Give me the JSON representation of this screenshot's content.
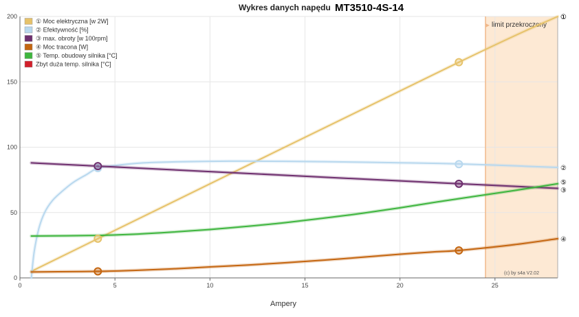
{
  "chart_data": {
    "type": "line",
    "title": "Wykres danych napędu",
    "model": "MT3510-4S-14",
    "xlabel": "Ampery",
    "ylabel": "",
    "xlim": [
      0,
      28.3
    ],
    "ylim": [
      0,
      200
    ],
    "xticks": [
      0,
      5,
      10,
      15,
      20,
      25
    ],
    "yticks": [
      0,
      50,
      100,
      150,
      200
    ],
    "grid": true,
    "legend_position": "top-left",
    "limit": {
      "label": "limit przekroczony",
      "x_start": 24.5,
      "color": "#fde9d4"
    },
    "credit": "(c) by s4a   V2.02",
    "series": [
      {
        "name": "Moc elektryczna [w 2W]",
        "marker": "①",
        "legend_prefix": "①",
        "color": "#e6c26a",
        "x": [
          0.6,
          4.1,
          23.1,
          28.3
        ],
        "y": [
          5,
          30,
          165,
          200
        ],
        "points": [
          [
            4.1,
            30
          ],
          [
            23.1,
            165
          ]
        ]
      },
      {
        "name": "Efektywność [%]",
        "marker": "②",
        "legend_prefix": "②",
        "color": "#b8d8ee",
        "x": [
          0.6,
          0.75,
          1,
          1.3,
          1.7,
          2.2,
          2.8,
          3.5,
          4.1,
          5,
          6.5,
          8,
          10,
          12,
          14,
          16,
          18,
          20,
          22,
          23.1,
          25,
          28.3
        ],
        "y": [
          0,
          20,
          38,
          50,
          59,
          66,
          73,
          79,
          84,
          86,
          88,
          88.7,
          89.2,
          89.3,
          89.2,
          88.9,
          88.5,
          88.1,
          87.6,
          87.2,
          86.3,
          84.5
        ],
        "points": [
          [
            4.1,
            84
          ],
          [
            23.1,
            87
          ]
        ]
      },
      {
        "name": "max. obroty [w 100rpm]",
        "marker": "③",
        "legend_prefix": "③",
        "color": "#6e2f6e",
        "x": [
          0.6,
          4.1,
          23.1,
          28.3
        ],
        "y": [
          88,
          85.5,
          72,
          68.5
        ],
        "points": [
          [
            4.1,
            85.5
          ],
          [
            23.1,
            72
          ]
        ]
      },
      {
        "name": "Moc tracona [W]",
        "marker": "④",
        "legend_prefix": "④",
        "color": "#c4650f",
        "x": [
          0.6,
          2,
          4.1,
          6,
          8,
          10,
          12,
          14,
          16,
          18,
          20,
          22,
          23.1,
          26,
          28.3
        ],
        "y": [
          4.5,
          4.7,
          5,
          5.7,
          6.9,
          8.4,
          9.8,
          11.6,
          13.6,
          15.8,
          18.1,
          20.1,
          21,
          25.4,
          30
        ],
        "points": [
          [
            4.1,
            5
          ],
          [
            23.1,
            21
          ]
        ]
      },
      {
        "name": "Temp. obudowy silnika [°C]",
        "marker": "⑤",
        "legend_prefix": "⑤",
        "color": "#3eb53e",
        "x": [
          0.6,
          4.1,
          6,
          8,
          10,
          12,
          14,
          16,
          18,
          20,
          22,
          24,
          26,
          28.3
        ],
        "y": [
          32,
          32.5,
          33.4,
          35,
          37,
          39.5,
          42.3,
          45.7,
          49.4,
          53.6,
          58.2,
          62.5,
          66.8,
          72
        ],
        "points": []
      },
      {
        "name": "Zbyt duża temp. silnika [°C]",
        "marker": "",
        "legend_prefix": "",
        "color": "#d21f2a",
        "x": [],
        "y": [],
        "points": []
      }
    ]
  }
}
